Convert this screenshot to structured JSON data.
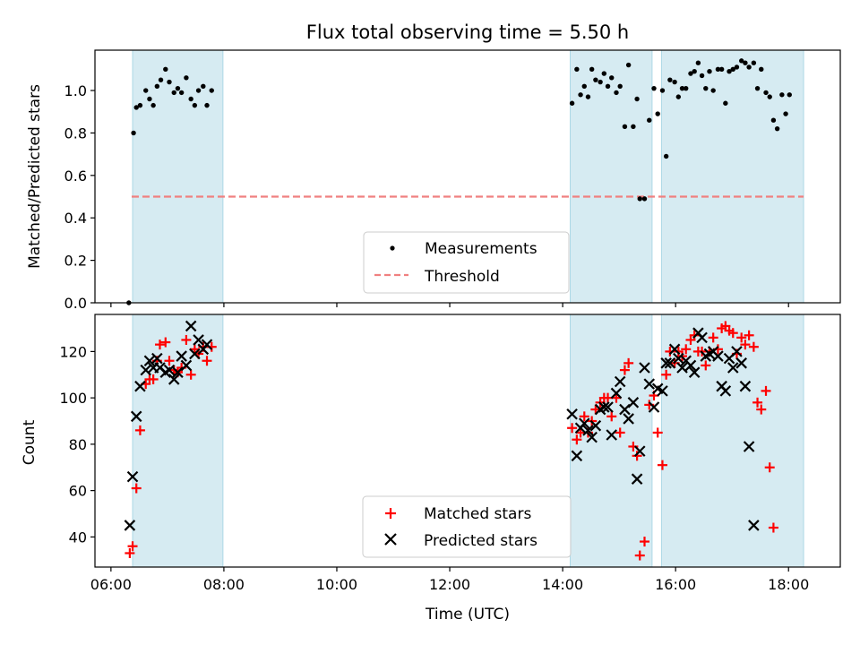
{
  "title": "Flux total observing time = 5.50 h",
  "xlabel": "Time (UTC)",
  "chart_data": [
    {
      "type": "scatter",
      "ylabel": "Matched/Predicted stars",
      "ylim": [
        0,
        1.19
      ],
      "yticks": [
        "0.0",
        "0.2",
        "0.4",
        "0.6",
        "0.8",
        "1.0"
      ],
      "shaded_intervals": [
        [
          "06:23",
          "07:59"
        ],
        [
          "14:08",
          "15:35"
        ],
        [
          "15:45",
          "18:16"
        ]
      ],
      "legend": {
        "position": "lower-center",
        "entries": [
          "Measurements",
          "Threshold"
        ]
      },
      "threshold": {
        "name": "Threshold",
        "value": 0.5,
        "x_range": [
          "06:22",
          "18:16"
        ]
      },
      "series": [
        {
          "name": "Measurements",
          "points": [
            [
              "06:19",
              0.0
            ],
            [
              "06:24",
              0.8
            ],
            [
              "06:27",
              0.92
            ],
            [
              "06:31",
              0.93
            ],
            [
              "06:37",
              1.0
            ],
            [
              "06:41",
              0.96
            ],
            [
              "06:45",
              0.93
            ],
            [
              "06:49",
              1.02
            ],
            [
              "06:53",
              1.05
            ],
            [
              "06:58",
              1.1
            ],
            [
              "07:02",
              1.04
            ],
            [
              "07:07",
              0.99
            ],
            [
              "07:11",
              1.01
            ],
            [
              "07:15",
              0.99
            ],
            [
              "07:20",
              1.06
            ],
            [
              "07:25",
              0.96
            ],
            [
              "07:29",
              0.93
            ],
            [
              "07:33",
              1.0
            ],
            [
              "07:38",
              1.02
            ],
            [
              "07:42",
              0.93
            ],
            [
              "07:47",
              1.0
            ],
            [
              "14:10",
              0.94
            ],
            [
              "14:15",
              1.1
            ],
            [
              "14:19",
              0.98
            ],
            [
              "14:23",
              1.02
            ],
            [
              "14:27",
              0.97
            ],
            [
              "14:31",
              1.1
            ],
            [
              "14:35",
              1.05
            ],
            [
              "14:40",
              1.04
            ],
            [
              "14:44",
              1.08
            ],
            [
              "14:48",
              1.02
            ],
            [
              "14:52",
              1.06
            ],
            [
              "14:57",
              0.99
            ],
            [
              "15:01",
              1.02
            ],
            [
              "15:06",
              0.83
            ],
            [
              "15:10",
              1.12
            ],
            [
              "15:15",
              0.83
            ],
            [
              "15:19",
              0.96
            ],
            [
              "15:22",
              0.49
            ],
            [
              "15:27",
              0.49
            ],
            [
              "15:32",
              0.86
            ],
            [
              "15:37",
              1.01
            ],
            [
              "15:41",
              0.89
            ],
            [
              "15:46",
              1.0
            ],
            [
              "15:50",
              0.69
            ],
            [
              "15:54",
              1.05
            ],
            [
              "15:59",
              1.04
            ],
            [
              "16:03",
              0.97
            ],
            [
              "16:07",
              1.01
            ],
            [
              "16:11",
              1.01
            ],
            [
              "16:16",
              1.08
            ],
            [
              "16:20",
              1.09
            ],
            [
              "16:24",
              1.13
            ],
            [
              "16:28",
              1.07
            ],
            [
              "16:32",
              1.01
            ],
            [
              "16:36",
              1.09
            ],
            [
              "16:40",
              1.0
            ],
            [
              "16:45",
              1.1
            ],
            [
              "16:49",
              1.1
            ],
            [
              "16:53",
              0.94
            ],
            [
              "16:57",
              1.09
            ],
            [
              "17:01",
              1.1
            ],
            [
              "17:05",
              1.11
            ],
            [
              "17:10",
              1.14
            ],
            [
              "17:14",
              1.13
            ],
            [
              "17:18",
              1.11
            ],
            [
              "17:23",
              1.13
            ],
            [
              "17:27",
              1.01
            ],
            [
              "17:31",
              1.1
            ],
            [
              "17:36",
              0.99
            ],
            [
              "17:40",
              0.97
            ],
            [
              "17:44",
              0.86
            ],
            [
              "17:48",
              0.82
            ],
            [
              "17:53",
              0.98
            ],
            [
              "17:57",
              0.89
            ],
            [
              "18:01",
              0.98
            ]
          ]
        }
      ]
    },
    {
      "type": "scatter",
      "ylabel": "Count",
      "ylim": [
        27,
        136
      ],
      "yticks": [
        "40",
        "60",
        "80",
        "100",
        "120"
      ],
      "xticks": [
        "06:00",
        "08:00",
        "10:00",
        "12:00",
        "14:00",
        "16:00",
        "18:00"
      ],
      "xlim": [
        "05:43",
        "18:55"
      ],
      "shaded_intervals": [
        [
          "06:23",
          "07:59"
        ],
        [
          "14:08",
          "15:35"
        ],
        [
          "15:45",
          "18:16"
        ]
      ],
      "legend": {
        "position": "lower-center",
        "entries": [
          "Matched stars",
          "Predicted stars"
        ]
      },
      "series": [
        {
          "name": "Matched stars",
          "marker": "+",
          "color": "#ff0000",
          "points": [
            [
              "06:20",
              33
            ],
            [
              "06:23",
              36
            ],
            [
              "06:27",
              61
            ],
            [
              "06:31",
              86
            ],
            [
              "06:37",
              106
            ],
            [
              "06:41",
              108
            ],
            [
              "06:45",
              108
            ],
            [
              "06:49",
              116
            ],
            [
              "06:52",
              123
            ],
            [
              "06:58",
              124
            ],
            [
              "07:02",
              116
            ],
            [
              "07:07",
              112
            ],
            [
              "07:11",
              111
            ],
            [
              "07:15",
              113
            ],
            [
              "07:20",
              125
            ],
            [
              "07:25",
              110
            ],
            [
              "07:29",
              121
            ],
            [
              "07:33",
              119
            ],
            [
              "07:38",
              122
            ],
            [
              "07:42",
              116
            ],
            [
              "07:47",
              122
            ],
            [
              "14:10",
              87
            ],
            [
              "14:15",
              82
            ],
            [
              "14:19",
              85
            ],
            [
              "14:23",
              92
            ],
            [
              "14:27",
              85
            ],
            [
              "14:31",
              90
            ],
            [
              "14:35",
              95
            ],
            [
              "14:40",
              98
            ],
            [
              "14:44",
              100
            ],
            [
              "14:48",
              100
            ],
            [
              "14:52",
              92
            ],
            [
              "14:57",
              100
            ],
            [
              "15:01",
              85
            ],
            [
              "15:06",
              112
            ],
            [
              "15:10",
              115
            ],
            [
              "15:15",
              79
            ],
            [
              "15:19",
              75
            ],
            [
              "15:22",
              32
            ],
            [
              "15:27",
              38
            ],
            [
              "15:32",
              97
            ],
            [
              "15:37",
              101
            ],
            [
              "15:41",
              85
            ],
            [
              "15:46",
              71
            ],
            [
              "15:50",
              110
            ],
            [
              "15:54",
              120
            ],
            [
              "15:59",
              115
            ],
            [
              "16:03",
              120
            ],
            [
              "16:07",
              118
            ],
            [
              "16:11",
              121
            ],
            [
              "16:16",
              125
            ],
            [
              "16:20",
              127
            ],
            [
              "16:24",
              120
            ],
            [
              "16:28",
              120
            ],
            [
              "16:32",
              114
            ],
            [
              "16:36",
              120
            ],
            [
              "16:40",
              126
            ],
            [
              "16:45",
              121
            ],
            [
              "16:49",
              130
            ],
            [
              "16:53",
              131
            ],
            [
              "16:57",
              129
            ],
            [
              "17:01",
              128
            ],
            [
              "17:05",
              119
            ],
            [
              "17:10",
              126
            ],
            [
              "17:14",
              123
            ],
            [
              "17:18",
              127
            ],
            [
              "17:23",
              122
            ],
            [
              "17:27",
              98
            ],
            [
              "17:31",
              95
            ],
            [
              "17:36",
              103
            ],
            [
              "17:40",
              70
            ],
            [
              "17:44",
              44
            ]
          ]
        },
        {
          "name": "Predicted stars",
          "marker": "x",
          "color": "#000000",
          "points": [
            [
              "06:20",
              45
            ],
            [
              "06:23",
              66
            ],
            [
              "06:27",
              92
            ],
            [
              "06:31",
              105
            ],
            [
              "06:37",
              112
            ],
            [
              "06:41",
              116
            ],
            [
              "06:45",
              113
            ],
            [
              "06:49",
              117
            ],
            [
              "06:52",
              113
            ],
            [
              "06:58",
              111
            ],
            [
              "07:02",
              112
            ],
            [
              "07:07",
              108
            ],
            [
              "07:11",
              111
            ],
            [
              "07:15",
              118
            ],
            [
              "07:20",
              114
            ],
            [
              "07:25",
              131
            ],
            [
              "07:29",
              119
            ],
            [
              "07:33",
              125
            ],
            [
              "07:38",
              121
            ],
            [
              "07:42",
              123
            ],
            [
              "14:10",
              93
            ],
            [
              "14:15",
              75
            ],
            [
              "14:19",
              87
            ],
            [
              "14:23",
              89
            ],
            [
              "14:27",
              86
            ],
            [
              "14:31",
              83
            ],
            [
              "14:35",
              88
            ],
            [
              "14:40",
              95
            ],
            [
              "14:44",
              96
            ],
            [
              "14:48",
              96
            ],
            [
              "14:52",
              84
            ],
            [
              "14:57",
              102
            ],
            [
              "15:01",
              107
            ],
            [
              "15:06",
              95
            ],
            [
              "15:10",
              91
            ],
            [
              "15:15",
              98
            ],
            [
              "15:19",
              65
            ],
            [
              "15:22",
              77
            ],
            [
              "15:27",
              113
            ],
            [
              "15:32",
              106
            ],
            [
              "15:37",
              96
            ],
            [
              "15:41",
              104
            ],
            [
              "15:46",
              103
            ],
            [
              "15:50",
              115
            ],
            [
              "15:54",
              115
            ],
            [
              "15:59",
              121
            ],
            [
              "16:03",
              117
            ],
            [
              "16:07",
              113
            ],
            [
              "16:11",
              116
            ],
            [
              "16:16",
              114
            ],
            [
              "16:20",
              111
            ],
            [
              "16:24",
              128
            ],
            [
              "16:28",
              126
            ],
            [
              "16:32",
              118
            ],
            [
              "16:36",
              119
            ],
            [
              "16:40",
              120
            ],
            [
              "16:45",
              118
            ],
            [
              "16:49",
              105
            ],
            [
              "16:53",
              103
            ],
            [
              "16:57",
              117
            ],
            [
              "17:01",
              113
            ],
            [
              "17:05",
              120
            ],
            [
              "17:10",
              115
            ],
            [
              "17:14",
              105
            ],
            [
              "17:18",
              79
            ],
            [
              "17:23",
              45
            ]
          ]
        }
      ]
    }
  ]
}
